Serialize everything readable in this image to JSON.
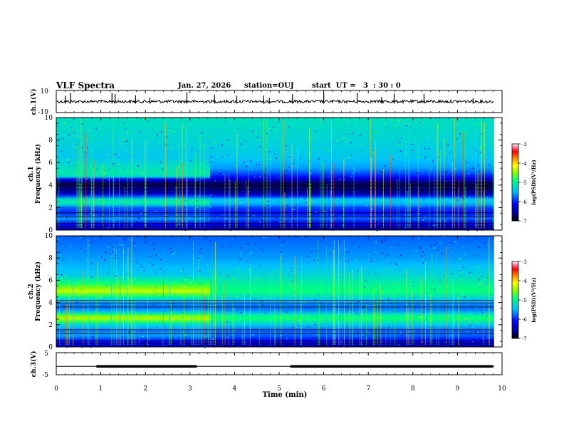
{
  "header": {
    "title": "VLF Spectra",
    "date": "Jan. 27, 2026",
    "station": "station=OUJ",
    "start_ut": "start  UT =   3  : 30 : 0"
  },
  "chart_data": [
    {
      "type": "line",
      "name": "ch1-waveform",
      "ylabel": "ch.1(V)",
      "ylim": [
        -10,
        10
      ],
      "yticks": [
        "10",
        "-10"
      ],
      "xlim": [
        0,
        10
      ],
      "baseline": 0,
      "note": "continuous noisy waveform near 0 V with sparse spikes"
    },
    {
      "type": "heatmap",
      "name": "ch1-spectrogram",
      "ylabel_line1": "ch.1",
      "ylabel_line2": "Frequency (kHz)",
      "ylim": [
        0,
        10
      ],
      "yticks": [
        "0",
        "2",
        "4",
        "6",
        "8",
        "10"
      ],
      "xlim": [
        0,
        10
      ],
      "colorbar": {
        "label": "log(PSD)(V²/Hz)",
        "range": [
          -7,
          -3
        ],
        "ticks": [
          "-3",
          "-4",
          "-5",
          "-6",
          "-7"
        ]
      },
      "segments": [
        {
          "t_start": 0,
          "t_end": 3.45,
          "level_by_freq": [
            [
              0,
              -6.5
            ],
            [
              0.5,
              -6.2
            ],
            [
              1.0,
              -5.6
            ],
            [
              1.5,
              -6.0
            ],
            [
              2.0,
              -5.8
            ],
            [
              2.4,
              -5.0
            ],
            [
              2.8,
              -5.3
            ],
            [
              3.2,
              -6.4
            ],
            [
              3.6,
              -6.6
            ],
            [
              4.0,
              -6.8
            ],
            [
              4.4,
              -6.5
            ],
            [
              4.8,
              -5.1
            ],
            [
              5.5,
              -5.2
            ],
            [
              6.5,
              -5.4
            ],
            [
              8.0,
              -5.3
            ],
            [
              10.0,
              -5.2
            ]
          ]
        },
        {
          "t_start": 3.45,
          "t_end": 9.82,
          "level_by_freq": [
            [
              0,
              -6.6
            ],
            [
              0.5,
              -6.3
            ],
            [
              1.0,
              -5.8
            ],
            [
              1.5,
              -6.1
            ],
            [
              2.0,
              -5.9
            ],
            [
              2.4,
              -5.4
            ],
            [
              2.8,
              -5.5
            ],
            [
              3.2,
              -6.5
            ],
            [
              3.6,
              -6.7
            ],
            [
              4.0,
              -6.8
            ],
            [
              4.4,
              -6.5
            ],
            [
              4.8,
              -6.0
            ],
            [
              5.5,
              -5.6
            ],
            [
              6.5,
              -5.4
            ],
            [
              8.0,
              -5.3
            ],
            [
              10.0,
              -5.2
            ]
          ]
        }
      ]
    },
    {
      "type": "heatmap",
      "name": "ch2-spectrogram",
      "ylabel_line1": "ch.2",
      "ylabel_line2": "Frequency (kHz)",
      "ylim": [
        0,
        10
      ],
      "yticks": [
        "0",
        "2",
        "4",
        "6",
        "8",
        "10"
      ],
      "xlim": [
        0,
        10
      ],
      "colorbar": {
        "label": "log(PSD)(V²/Hz)",
        "range": [
          -7,
          -3
        ],
        "ticks": [
          "-3",
          "-4",
          "-5",
          "-6",
          "-7"
        ]
      },
      "segments": [
        {
          "t_start": 0,
          "t_end": 3.45,
          "level_by_freq": [
            [
              0,
              -6.5
            ],
            [
              0.5,
              -6.1
            ],
            [
              1.0,
              -5.6
            ],
            [
              1.5,
              -5.7
            ],
            [
              2.0,
              -5.3
            ],
            [
              2.4,
              -4.6
            ],
            [
              2.6,
              -4.2
            ],
            [
              2.8,
              -4.6
            ],
            [
              3.2,
              -5.5
            ],
            [
              3.6,
              -5.8
            ],
            [
              4.0,
              -5.6
            ],
            [
              4.5,
              -5.0
            ],
            [
              5.0,
              -4.3
            ],
            [
              5.5,
              -4.7
            ],
            [
              6.5,
              -5.4
            ],
            [
              8.0,
              -5.6
            ],
            [
              10.0,
              -5.8
            ]
          ]
        },
        {
          "t_start": 3.45,
          "t_end": 9.82,
          "level_by_freq": [
            [
              0,
              -6.6
            ],
            [
              0.5,
              -6.2
            ],
            [
              1.0,
              -5.8
            ],
            [
              1.5,
              -5.8
            ],
            [
              2.0,
              -5.4
            ],
            [
              2.4,
              -5.0
            ],
            [
              2.6,
              -4.8
            ],
            [
              2.8,
              -5.0
            ],
            [
              3.2,
              -5.6
            ],
            [
              3.6,
              -5.8
            ],
            [
              4.0,
              -5.6
            ],
            [
              4.5,
              -5.2
            ],
            [
              5.0,
              -4.9
            ],
            [
              5.5,
              -5.0
            ],
            [
              6.5,
              -5.3
            ],
            [
              8.0,
              -5.6
            ],
            [
              10.0,
              -5.8
            ]
          ]
        }
      ]
    },
    {
      "type": "line",
      "name": "ch3-signal",
      "ylabel": "ch.3(V)",
      "ylim": [
        -5,
        5
      ],
      "yticks": [
        "5",
        "-5"
      ],
      "xlim": [
        0,
        10
      ],
      "baseline": -1.2,
      "bold_segments": [
        [
          0.9,
          3.15
        ],
        [
          5.25,
          9.8
        ]
      ]
    }
  ],
  "xaxis": {
    "label": "Time (min)",
    "ticks": [
      "0",
      "1",
      "2",
      "3",
      "4",
      "5",
      "6",
      "7",
      "8",
      "9",
      "10"
    ],
    "range": [
      0,
      10
    ]
  }
}
